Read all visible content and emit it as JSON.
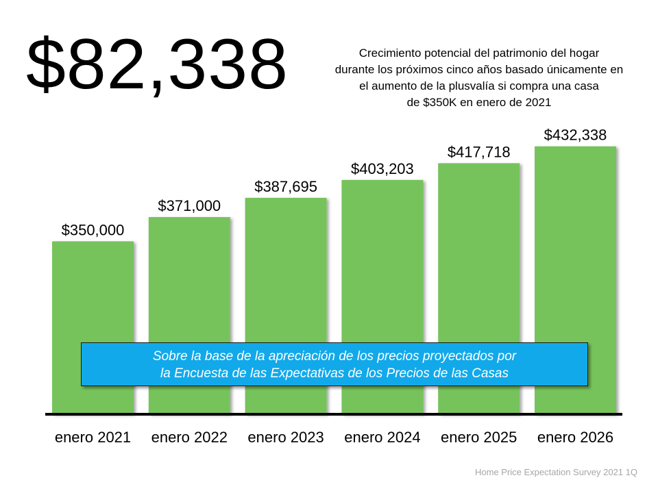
{
  "headline": "$82,338",
  "description": [
    "Crecimiento potencial del patrimonio del hogar",
    "durante los próximos cinco años basado únicamente en",
    "el aumento de la plusvalía si compra una casa",
    "de $350K en enero de 2021"
  ],
  "note": [
    "Sobre la base de la apreciación de los precios proyectados por",
    "la Encuesta de las Expectativas de los Precios de las Casas"
  ],
  "source": "Home Price Expectation Survey 2021 1Q",
  "colors": {
    "bar": "#76c35c",
    "note_box": "#12a9ea",
    "axis": "#000000"
  },
  "chart_data": {
    "type": "bar",
    "categories": [
      "enero 2021",
      "enero 2022",
      "enero 2023",
      "enero 2024",
      "enero 2025",
      "enero 2026"
    ],
    "values": [
      350000,
      371000,
      387695,
      403203,
      417718,
      432338
    ],
    "data_labels": [
      "$350,000",
      "$371,000",
      "$387,695",
      "$403,203",
      "$417,718",
      "$432,338"
    ],
    "ylim": [
      200000,
      450000
    ],
    "grid": false
  }
}
